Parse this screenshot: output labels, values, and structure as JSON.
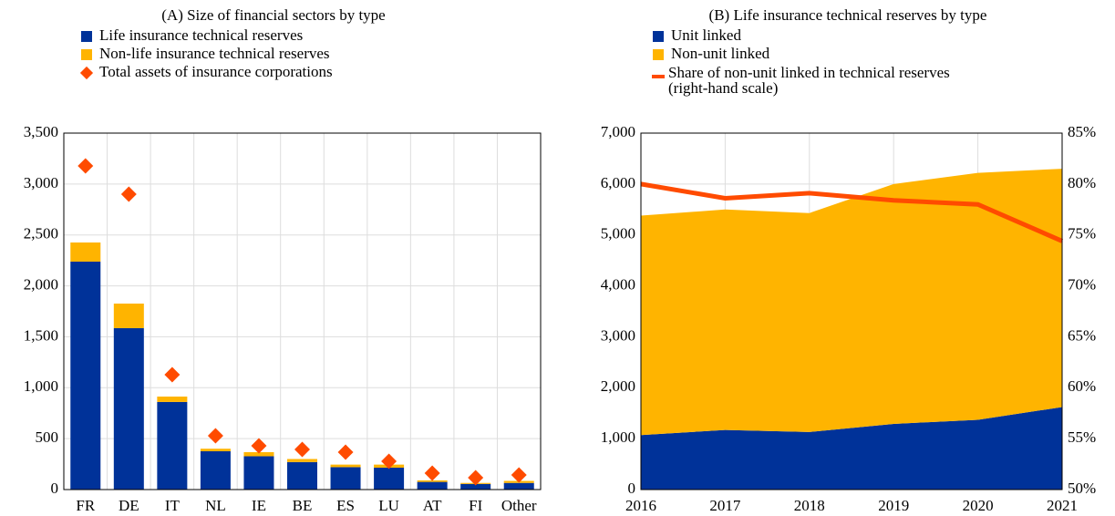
{
  "chart_data": [
    {
      "type": "bar",
      "title": "(A) Size of financial sectors by type",
      "categories": [
        "FR",
        "DE",
        "IT",
        "NL",
        "IE",
        "BE",
        "ES",
        "LU",
        "AT",
        "FI",
        "Other"
      ],
      "series": [
        {
          "name": "Life insurance technical reserves",
          "color": "#003299",
          "values": [
            2238,
            1585,
            860,
            376,
            327,
            270,
            220,
            215,
            75,
            55,
            65
          ]
        },
        {
          "name": "Non-life insurance technical reserves",
          "color": "#ffb400",
          "values": [
            188,
            241,
            53,
            25,
            40,
            30,
            25,
            30,
            15,
            10,
            20
          ]
        },
        {
          "name": "Total assets of insurance corporations",
          "color": "#ff4b00",
          "type": "scatter",
          "values": [
            3178,
            2900,
            1128,
            528,
            430,
            394,
            367,
            278,
            161,
            116,
            143
          ]
        }
      ],
      "ylim": [
        0,
        3500
      ],
      "yticks": [
        0,
        500,
        {
          "value": 1000,
          "label": "1,000"
        },
        {
          "value": 1500,
          "label": "1,500"
        },
        {
          "value": 2000,
          "label": "2,000"
        },
        {
          "value": 2500,
          "label": "2,500"
        },
        {
          "value": 3000,
          "label": "3,000"
        },
        {
          "value": 3500,
          "label": "3,500"
        }
      ],
      "grid": true
    },
    {
      "type": "area",
      "title": "(B) Life insurance technical reserves by type",
      "x": [
        2016,
        2017,
        2018,
        2019,
        2020,
        2021
      ],
      "series": [
        {
          "name": "Unit linked",
          "color": "#003299",
          "values": [
            1070,
            1170,
            1130,
            1290,
            1370,
            1620
          ]
        },
        {
          "name": "Non-unit linked",
          "color": "#ffb400",
          "values": [
            4310,
            4330,
            4300,
            4710,
            4850,
            4680
          ]
        },
        {
          "name": "Share of non-unit linked in technical reserves (right-hand scale)",
          "color": "#ff4b00",
          "type": "line",
          "axis": "y2",
          "values": [
            80,
            78.6,
            79.1,
            78.4,
            78.0,
            74.4
          ]
        }
      ],
      "xlim": [
        2016,
        2021
      ],
      "xticks": [
        2016,
        2017,
        2018,
        2019,
        2020,
        2021
      ],
      "ylim": [
        0,
        7000
      ],
      "yticks": [
        0,
        {
          "value": 1000,
          "label": "1,000"
        },
        {
          "value": 2000,
          "label": "2,000"
        },
        {
          "value": 3000,
          "label": "3,000"
        },
        {
          "value": 4000,
          "label": "4,000"
        },
        {
          "value": 5000,
          "label": "5,000"
        },
        {
          "value": 6000,
          "label": "6,000"
        },
        {
          "value": 7000,
          "label": "7,000"
        }
      ],
      "y2lim": [
        50,
        85
      ],
      "y2ticks": [
        {
          "value": 50,
          "label": "50%"
        },
        {
          "value": 55,
          "label": "55%"
        },
        {
          "value": 60,
          "label": "60%"
        },
        {
          "value": 65,
          "label": "65%"
        },
        {
          "value": 70,
          "label": "70%"
        },
        {
          "value": 75,
          "label": "75%"
        },
        {
          "value": 80,
          "label": "80%"
        },
        {
          "value": 85,
          "label": "85%"
        }
      ],
      "grid": true
    }
  ]
}
